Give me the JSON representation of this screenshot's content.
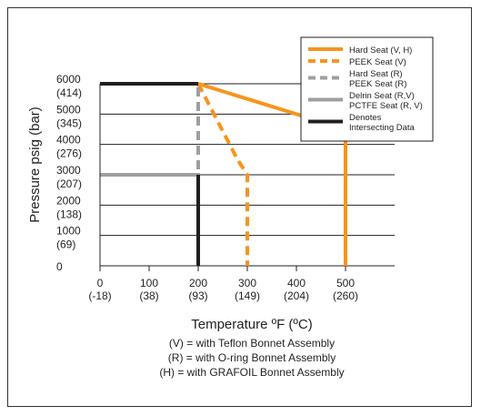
{
  "chart_data": {
    "type": "line",
    "ylabel": "Pressure psig (bar)",
    "xlabel": "Temperature ºF (ºC)",
    "xlim": [
      0,
      600
    ],
    "ylim": [
      0,
      6000
    ],
    "grid": "horizontal",
    "legend_placement": "top-right",
    "x_ticks": [
      {
        "value": 0,
        "label": "0",
        "sub": "(-18)"
      },
      {
        "value": 100,
        "label": "100",
        "sub": "(38)"
      },
      {
        "value": 200,
        "label": "200",
        "sub": "(93)"
      },
      {
        "value": 300,
        "label": "300",
        "sub": "(149)"
      },
      {
        "value": 400,
        "label": "400",
        "sub": "(204)"
      },
      {
        "value": 500,
        "label": "500",
        "sub": "(260)"
      }
    ],
    "y_ticks": [
      {
        "value": 6000,
        "label": "6000",
        "sub": "(414)"
      },
      {
        "value": 5000,
        "label": "5000",
        "sub": "(345)"
      },
      {
        "value": 4000,
        "label": "4000",
        "sub": "(276)"
      },
      {
        "value": 3000,
        "label": "3000",
        "sub": "(207)"
      },
      {
        "value": 2000,
        "label": "2000",
        "sub": "(138)"
      },
      {
        "value": 1000,
        "label": "1000",
        "sub": "(69)"
      },
      {
        "value": 0,
        "label": "0",
        "sub": ""
      }
    ],
    "series": [
      {
        "name": "Hard Seat (V, H)",
        "color": "#f7941d",
        "style": "solid",
        "points": [
          [
            0,
            6000
          ],
          [
            200,
            6000
          ],
          [
            500,
            4500
          ],
          [
            500,
            0
          ]
        ]
      },
      {
        "name": "PEEK Seat (V)",
        "color": "#f7941d",
        "style": "dashed",
        "points": [
          [
            200,
            6000
          ],
          [
            280,
            3500
          ],
          [
            300,
            3000
          ],
          [
            300,
            0
          ]
        ]
      },
      {
        "name": "Hard Seat (R)\nPEEK Seat (R)",
        "color": "#9d9fa2",
        "style": "dashed",
        "points": [
          [
            0,
            6000
          ],
          [
            200,
            6000
          ],
          [
            200,
            0
          ]
        ]
      },
      {
        "name": "Delrin Seat (R,V)\nPCTFE Seat (R, V)",
        "color": "#9d9fa2",
        "style": "solid",
        "points": [
          [
            0,
            3000
          ],
          [
            200,
            3000
          ],
          [
            200,
            0
          ]
        ]
      },
      {
        "name": "Denotes\nIntersecting Data",
        "color": "#231f20",
        "style": "solid",
        "points": [
          [
            0,
            6000
          ],
          [
            200,
            6000
          ]
        ]
      },
      {
        "name": "",
        "color": "#231f20",
        "style": "solid",
        "points": [
          [
            200,
            3000
          ],
          [
            200,
            0
          ]
        ]
      }
    ]
  },
  "notes": [
    "(V) = with Teflon Bonnet Assembly",
    "(R) = with O-ring Bonnet Assembly",
    "(H) = with GRAFOIL Bonnet Assembly"
  ]
}
